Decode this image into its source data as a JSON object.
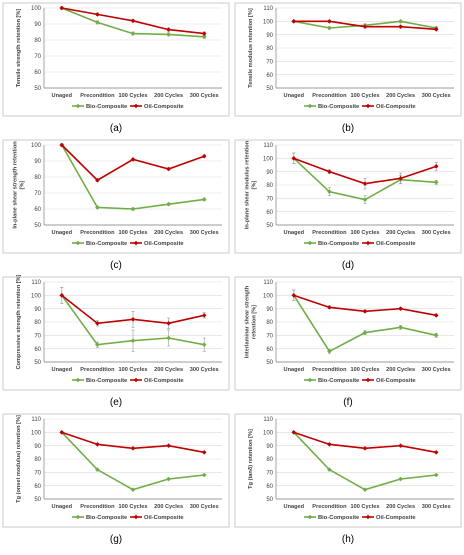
{
  "colors": {
    "bio": "#70ad47",
    "oil": "#c00000",
    "grid": "#d9d9d9",
    "axis": "#808080",
    "text": "#404040"
  },
  "chart_data": [
    {
      "panel": "(a)",
      "type": "line",
      "ylabel": "Tensile strength retention [%]",
      "ylabel_lines": [
        "Tensile strength retention [%]"
      ],
      "ylim": [
        50,
        100
      ],
      "ticks": [
        50,
        60,
        70,
        80,
        90,
        100
      ],
      "categories": [
        "Unaged",
        "Precondition",
        "100 Cycles",
        "200  Cycles",
        "300 Cycles"
      ],
      "series": [
        {
          "name": "Bio-Composite",
          "key": "bio",
          "values": [
            100,
            91,
            84,
            83.5,
            82
          ],
          "errors": [
            0.8,
            1,
            1,
            1,
            1
          ]
        },
        {
          "name": "Oil-Composite",
          "key": "oil",
          "values": [
            100,
            96,
            92,
            86.5,
            84
          ],
          "errors": [
            0.8,
            0.8,
            0.8,
            1,
            1
          ]
        }
      ]
    },
    {
      "panel": "(b)",
      "type": "line",
      "ylabel": "Tensile modulus retention [%]",
      "ylabel_lines": [
        "Tensile modulus retention [%]"
      ],
      "ylim": [
        50,
        110
      ],
      "ticks": [
        50,
        60,
        70,
        80,
        90,
        100,
        110
      ],
      "categories": [
        "Unaged",
        "Precondition",
        "100 Cycles",
        "200  Cycles",
        "300 Cycles"
      ],
      "series": [
        {
          "name": "Bio-Composite",
          "key": "bio",
          "values": [
            100,
            95,
            97,
            100,
            95
          ],
          "errors": [
            0.8,
            1,
            1,
            1,
            1
          ]
        },
        {
          "name": "Oil-Composite",
          "key": "oil",
          "values": [
            100,
            100,
            96,
            96,
            94
          ],
          "errors": [
            0.8,
            0.8,
            1,
            1,
            1
          ]
        }
      ]
    },
    {
      "panel": "(c)",
      "type": "line",
      "ylabel": "In-plane shear strength retention [%]",
      "ylabel_lines": [
        "In-plane shear strength retention",
        "[%]"
      ],
      "ylim": [
        50,
        100
      ],
      "ticks": [
        50,
        60,
        70,
        80,
        90,
        100
      ],
      "categories": [
        "Unaged",
        "Precondition",
        "100 Cycles",
        "200  Cycles",
        "300 Cycles"
      ],
      "series": [
        {
          "name": "Bio-Composite",
          "key": "bio",
          "values": [
            100,
            61,
            60,
            63,
            66
          ],
          "errors": [
            0.8,
            0.8,
            0.8,
            0.8,
            0.8
          ]
        },
        {
          "name": "Oil-Composite",
          "key": "oil",
          "values": [
            100,
            78,
            91,
            85,
            93
          ],
          "errors": [
            0.8,
            0.8,
            0.8,
            0.8,
            0.8
          ]
        }
      ]
    },
    {
      "panel": "(d)",
      "type": "line",
      "ylabel": "In-plane shear modulus retention [%]",
      "ylabel_lines": [
        "In-plane shear modulus retention",
        "[%]"
      ],
      "ylim": [
        50,
        110
      ],
      "ticks": [
        50,
        60,
        70,
        80,
        90,
        100,
        110
      ],
      "categories": [
        "Unaged",
        "Precondition",
        "100 Cycles",
        "200  Cycles",
        "300 Cycles"
      ],
      "series": [
        {
          "name": "Bio-Composite",
          "key": "bio",
          "values": [
            100,
            75,
            69,
            84,
            82
          ],
          "errors": [
            4,
            3,
            3,
            3,
            1.5
          ]
        },
        {
          "name": "Oil-Composite",
          "key": "oil",
          "values": [
            100,
            90,
            81,
            85,
            94
          ],
          "errors": [
            4,
            1.5,
            4,
            4,
            3
          ]
        }
      ]
    },
    {
      "panel": "(e)",
      "type": "line",
      "ylabel": "Compressive strength retention [%]",
      "ylabel_lines": [
        "Compressive strength retention [%]"
      ],
      "ylim": [
        50,
        110
      ],
      "ticks": [
        50,
        60,
        70,
        80,
        90,
        100,
        110
      ],
      "categories": [
        "Unaged",
        "Precondition",
        "100 Cycles",
        "200  Cycles",
        "300 Cycles"
      ],
      "series": [
        {
          "name": "Bio-Composite",
          "key": "bio",
          "values": [
            100,
            63,
            66,
            68,
            63
          ],
          "errors": [
            6,
            2,
            8,
            6,
            5
          ]
        },
        {
          "name": "Oil-Composite",
          "key": "oil",
          "values": [
            100,
            79,
            82,
            79,
            85
          ],
          "errors": [
            6,
            2,
            6,
            4,
            2
          ]
        }
      ]
    },
    {
      "panel": "(f)",
      "type": "line",
      "ylabel": "Interlaminar shear strength retention [%]",
      "ylabel_lines": [
        "Interlaminar shear strength",
        "retention [%]"
      ],
      "ylim": [
        50,
        110
      ],
      "ticks": [
        50,
        60,
        70,
        80,
        90,
        100,
        110
      ],
      "categories": [
        "Unaged",
        "Precondition",
        "100 Cycles",
        "200  Cycles",
        "300 Cycles"
      ],
      "series": [
        {
          "name": "Bio-Composite",
          "key": "bio",
          "values": [
            100,
            58,
            72,
            76,
            70
          ],
          "errors": [
            4,
            1.5,
            1.5,
            1.5,
            1.5
          ]
        },
        {
          "name": "Oil-Composite",
          "key": "oil",
          "values": [
            100,
            91,
            88,
            90,
            85
          ],
          "errors": [
            4,
            1,
            1,
            1,
            1
          ]
        }
      ]
    },
    {
      "panel": "(g)",
      "type": "line",
      "ylabel": "Tg (onset modulus) retention [%]",
      "ylabel_lines": [
        "Tg (onset modulus) retention [%]"
      ],
      "ylim": [
        50,
        110
      ],
      "ticks": [
        50,
        60,
        70,
        80,
        90,
        100,
        110
      ],
      "categories": [
        "Unaged",
        "Precondition",
        "100 Cycles",
        "200  Cycles",
        "300 Cycles"
      ],
      "series": [
        {
          "name": "Bio-Composite",
          "key": "bio",
          "values": [
            100,
            72,
            57,
            65,
            68
          ],
          "errors": [
            0.6,
            0.6,
            0.6,
            0.6,
            0.6
          ]
        },
        {
          "name": "Oil-Composite",
          "key": "oil",
          "values": [
            100,
            91,
            88,
            90,
            85
          ],
          "errors": [
            0.6,
            0.6,
            0.6,
            0.6,
            0.6
          ]
        }
      ]
    },
    {
      "panel": "(h)",
      "type": "line",
      "ylabel": "Tg (tanδ) retention [%]",
      "ylabel_lines": [
        "Tg (tanδ) retention [%]"
      ],
      "ylim": [
        50,
        110
      ],
      "ticks": [
        50,
        60,
        70,
        80,
        90,
        100,
        110
      ],
      "categories": [
        "Unaged",
        "Precondition",
        "100 Cycles",
        "200  Cycles",
        "300 Cycles"
      ],
      "series": [
        {
          "name": "Bio-Composite",
          "key": "bio",
          "values": [
            100,
            72,
            57,
            65,
            68
          ],
          "errors": [
            0.6,
            0.6,
            0.6,
            0.6,
            0.6
          ]
        },
        {
          "name": "Oil-Composite",
          "key": "oil",
          "values": [
            100,
            91,
            88,
            90,
            85
          ],
          "errors": [
            0.6,
            0.6,
            0.6,
            0.6,
            0.6
          ]
        }
      ]
    }
  ]
}
